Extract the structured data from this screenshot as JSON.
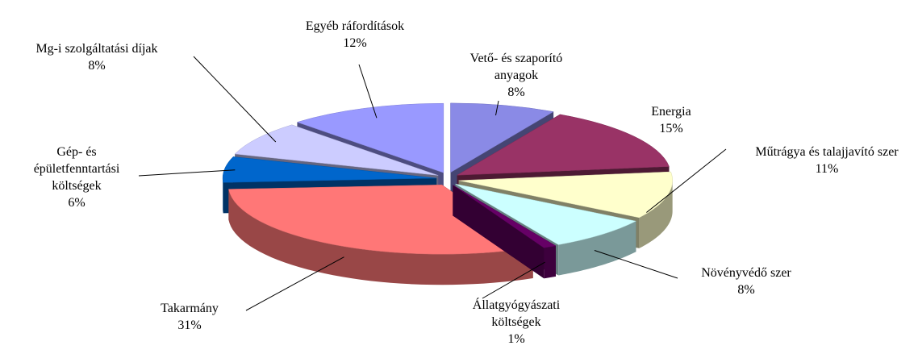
{
  "chart_data": {
    "type": "pie",
    "categories": [
      "Vető- és szaporító anyagok",
      "Energia",
      "Műtrágya és talajjavító szer",
      "Növényvédő szer",
      "Állatgyógyászati költségek",
      "Takarmány",
      "Gép- és épületfenntartási költségek",
      "Mg-i szolgáltatási díjak",
      "Egyéb ráfordítások"
    ],
    "values": [
      8,
      15,
      11,
      8,
      1,
      31,
      6,
      8,
      12
    ],
    "value_labels": [
      "8%",
      "15%",
      "11%",
      "8%",
      "1%",
      "31%",
      "6%",
      "8%",
      "12%"
    ],
    "colors": [
      "#8a8ae6",
      "#993366",
      "#ffffcc",
      "#ccffff",
      "#660066",
      "#ff7777",
      "#0066cc",
      "#ccccff",
      "#9999ff"
    ]
  }
}
